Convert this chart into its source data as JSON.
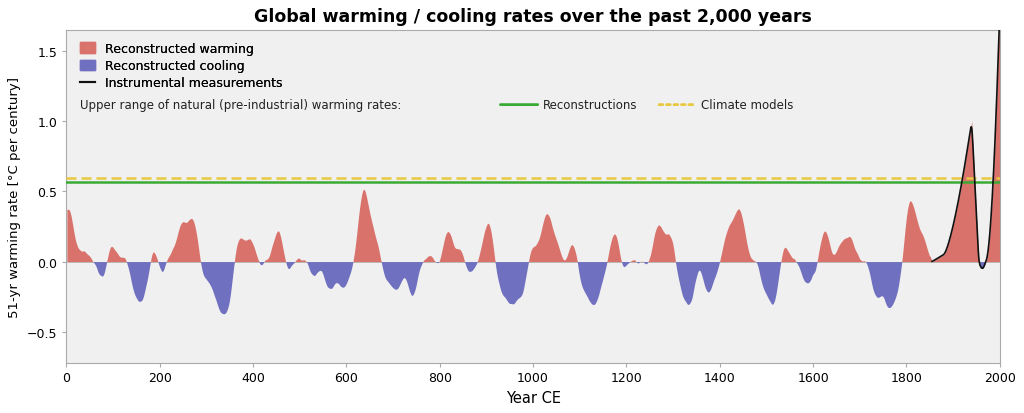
{
  "title": "Global warming / cooling rates over the past 2,000 years",
  "xlabel": "Year CE",
  "ylabel": "51-yr warming rate [°C per century]",
  "xlim": [
    0,
    2000
  ],
  "ylim": [
    -0.72,
    1.65
  ],
  "yticks": [
    -0.5,
    0,
    0.5,
    1.0,
    1.5
  ],
  "xticks": [
    0,
    200,
    400,
    600,
    800,
    1000,
    1200,
    1400,
    1600,
    1800,
    2000
  ],
  "recon_line_color": "#3aaa35",
  "climate_model_line_color": "#e8c840",
  "recon_upper_bound": 0.565,
  "climate_model_upper_bound": 0.595,
  "warming_color": "#d9726b",
  "cooling_color": "#7070c0",
  "instrumental_color": "#111111",
  "plot_bg_color": "#f0f0f0",
  "fig_bg_color": "#ffffff",
  "grid_color": "#dddddd",
  "spine_color": "#aaaaaa"
}
